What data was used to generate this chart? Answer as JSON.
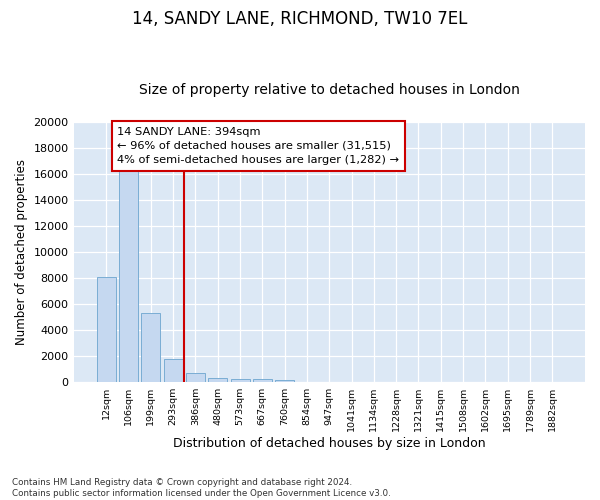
{
  "title1": "14, SANDY LANE, RICHMOND, TW10 7EL",
  "title2": "Size of property relative to detached houses in London",
  "xlabel": "Distribution of detached houses by size in London",
  "ylabel": "Number of detached properties",
  "bar_values": [
    8100,
    16500,
    5300,
    1750,
    700,
    350,
    265,
    210,
    170,
    0,
    0,
    0,
    0,
    0,
    0,
    0,
    0,
    0,
    0,
    0,
    0
  ],
  "bar_labels": [
    "12sqm",
    "106sqm",
    "199sqm",
    "293sqm",
    "386sqm",
    "480sqm",
    "573sqm",
    "667sqm",
    "760sqm",
    "854sqm",
    "947sqm",
    "1041sqm",
    "1134sqm",
    "1228sqm",
    "1321sqm",
    "1415sqm",
    "1508sqm",
    "1602sqm",
    "1695sqm",
    "1789sqm",
    "1882sqm"
  ],
  "bar_color": "#c5d8f0",
  "bar_edge_color": "#7aadd4",
  "vline_color": "#cc0000",
  "annotation_line1": "14 SANDY LANE: 394sqm",
  "annotation_line2": "← 96% of detached houses are smaller (31,515)",
  "annotation_line3": "4% of semi-detached houses are larger (1,282) →",
  "annotation_box_color": "#ffffff",
  "annotation_box_edge": "#cc0000",
  "ylim": [
    0,
    20000
  ],
  "yticks": [
    0,
    2000,
    4000,
    6000,
    8000,
    10000,
    12000,
    14000,
    16000,
    18000,
    20000
  ],
  "footnote": "Contains HM Land Registry data © Crown copyright and database right 2024.\nContains public sector information licensed under the Open Government Licence v3.0.",
  "bg_color": "#dce8f5",
  "fig_color": "#ffffff",
  "title1_fontsize": 12,
  "title2_fontsize": 10,
  "vline_bar_index": 4
}
